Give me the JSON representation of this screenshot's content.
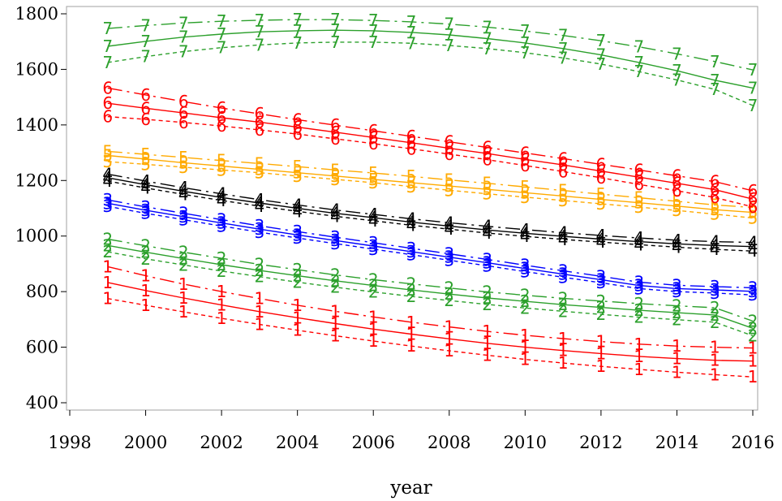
{
  "chart_data": {
    "type": "line",
    "xlabel": "year",
    "ylabel": "",
    "xlim": [
      1998,
      2016
    ],
    "ylim": [
      400,
      1800
    ],
    "x_ticks": [
      "1998",
      "2000",
      "2002",
      "2004",
      "2006",
      "2008",
      "2010",
      "2012",
      "2014",
      "2016"
    ],
    "y_ticks": [
      "400",
      "600",
      "800",
      "1000",
      "1200",
      "1400",
      "1600",
      "1800"
    ],
    "grid": false,
    "x": [
      1999,
      2000,
      2001,
      2002,
      2003,
      2004,
      2005,
      2006,
      2007,
      2008,
      2009,
      2010,
      2011,
      2012,
      2013,
      2014,
      2015,
      2016
    ],
    "groups": [
      {
        "label": "1",
        "color": "#ff0000",
        "estimate": [
          833,
          804,
          777,
          752,
          728,
          706,
          685,
          665,
          647,
          630,
          614,
          600,
          588,
          577,
          567,
          559,
          553,
          550
        ],
        "lower": [
          775,
          751,
          727,
          704,
          682,
          661,
          641,
          622,
          604,
          587,
          571,
          556,
          543,
          531,
          520,
          510,
          501,
          493
        ],
        "upper": [
          890,
          857,
          827,
          800,
          775,
          751,
          729,
          709,
          690,
          673,
          657,
          643,
          631,
          620,
          611,
          604,
          600,
          597
        ]
      },
      {
        "label": "2",
        "color": "#2ca02c",
        "estimate": [
          966,
          942,
          919,
          897,
          876,
          857,
          839,
          822,
          806,
          791,
          777,
          765,
          753,
          743,
          733,
          724,
          716,
          668
        ],
        "lower": [
          943,
          918,
          896,
          874,
          854,
          834,
          816,
          799,
          783,
          768,
          754,
          741,
          729,
          718,
          708,
          699,
          690,
          641
        ],
        "upper": [
          989,
          965,
          942,
          920,
          898,
          879,
          860,
          843,
          828,
          813,
          799,
          787,
          776,
          766,
          757,
          749,
          742,
          694
        ]
      },
      {
        "label": "3",
        "color": "#0000ff",
        "estimate": [
          1118,
          1093,
          1070,
          1047,
          1025,
          1004,
          984,
          964,
          944,
          924,
          904,
          883,
          863,
          843,
          822,
          811,
          806,
          801
        ],
        "lower": [
          1107,
          1082,
          1059,
          1036,
          1014,
          993,
          973,
          953,
          933,
          913,
          893,
          872,
          852,
          832,
          811,
          800,
          795,
          788
        ],
        "upper": [
          1130,
          1105,
          1082,
          1059,
          1037,
          1016,
          996,
          976,
          956,
          936,
          916,
          895,
          875,
          855,
          834,
          823,
          818,
          814
        ]
      },
      {
        "label": "4",
        "color": "#000000",
        "estimate": [
          1210,
          1185,
          1161,
          1139,
          1119,
          1100,
          1082,
          1066,
          1050,
          1036,
          1022,
          1010,
          999,
          989,
          980,
          972,
          966,
          962
        ],
        "lower": [
          1198,
          1173,
          1150,
          1128,
          1108,
          1089,
          1071,
          1055,
          1039,
          1025,
          1011,
          999,
          988,
          978,
          969,
          960,
          952,
          946
        ],
        "upper": [
          1223,
          1198,
          1174,
          1152,
          1131,
          1112,
          1094,
          1078,
          1062,
          1048,
          1035,
          1023,
          1012,
          1002,
          993,
          985,
          980,
          977
        ]
      },
      {
        "label": "5",
        "color": "#ffaa00",
        "estimate": [
          1290,
          1277,
          1264,
          1252,
          1240,
          1228,
          1216,
          1204,
          1192,
          1180,
          1168,
          1156,
          1144,
          1132,
          1120,
          1108,
          1095,
          1085
        ],
        "lower": [
          1268,
          1258,
          1248,
          1238,
          1228,
          1216,
          1204,
          1192,
          1178,
          1165,
          1152,
          1140,
          1128,
          1116,
          1104,
          1092,
          1079,
          1065
        ],
        "upper": [
          1305,
          1294,
          1283,
          1272,
          1261,
          1250,
          1238,
          1227,
          1215,
          1202,
          1190,
          1177,
          1164,
          1151,
          1138,
          1125,
          1112,
          1103
        ]
      },
      {
        "label": "6",
        "color": "#ff0000",
        "estimate": [
          1478,
          1460,
          1443,
          1426,
          1410,
          1392,
          1374,
          1355,
          1336,
          1316,
          1297,
          1276,
          1256,
          1234,
          1212,
          1190,
          1167,
          1133
        ],
        "lower": [
          1430,
          1420,
          1409,
          1396,
          1382,
          1367,
          1350,
          1333,
          1314,
          1295,
          1275,
          1254,
          1232,
          1210,
          1186,
          1163,
          1139,
          1105
        ],
        "upper": [
          1533,
          1508,
          1484,
          1461,
          1440,
          1419,
          1399,
          1379,
          1359,
          1339,
          1319,
          1299,
          1279,
          1258,
          1238,
          1217,
          1196,
          1163
        ]
      },
      {
        "label": "7",
        "color": "#2ca02c",
        "estimate": [
          1683,
          1701,
          1716,
          1727,
          1735,
          1739,
          1741,
          1739,
          1733,
          1724,
          1711,
          1695,
          1675,
          1652,
          1625,
          1595,
          1561,
          1533
        ],
        "lower": [
          1625,
          1646,
          1664,
          1678,
          1688,
          1695,
          1698,
          1698,
          1694,
          1686,
          1675,
          1660,
          1641,
          1619,
          1592,
          1562,
          1528,
          1470
        ],
        "upper": [
          1747,
          1758,
          1767,
          1773,
          1777,
          1779,
          1779,
          1776,
          1771,
          1763,
          1752,
          1738,
          1722,
          1703,
          1681,
          1656,
          1628,
          1598
        ]
      }
    ]
  }
}
